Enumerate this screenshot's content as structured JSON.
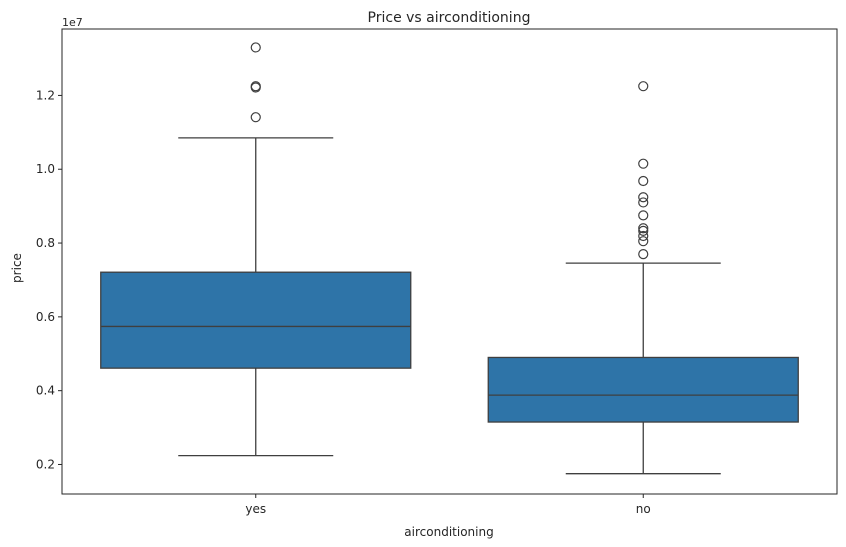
{
  "chart_data": {
    "type": "box",
    "title": "Price vs airconditioning",
    "xlabel": "airconditioning",
    "ylabel": "price",
    "y_offset_label": "1e7",
    "categories": [
      "yes",
      "no"
    ],
    "ylim": [
      1200000,
      13800000
    ],
    "yticks": [
      2000000,
      4000000,
      6000000,
      8000000,
      10000000,
      12000000
    ],
    "ytick_labels": [
      "0.2",
      "0.4",
      "0.6",
      "0.8",
      "1.0",
      "1.2"
    ],
    "box_color": "#2e74a8",
    "grid": false,
    "boxes": [
      {
        "category": "yes",
        "whisker_low": 2240000,
        "q1": 4610000,
        "median": 5740000,
        "q3": 7210000,
        "whisker_high": 10850000,
        "outliers": [
          13300000,
          12250000,
          12215000,
          11410000
        ]
      },
      {
        "category": "no",
        "whisker_low": 1750000,
        "q1": 3150000,
        "median": 3880000,
        "q3": 4900000,
        "whisker_high": 7455000,
        "outliers": [
          12250000,
          10150000,
          9681000,
          9240000,
          9100000,
          8750000,
          8400000,
          8330000,
          8190000,
          8050000,
          7700000
        ]
      }
    ]
  }
}
